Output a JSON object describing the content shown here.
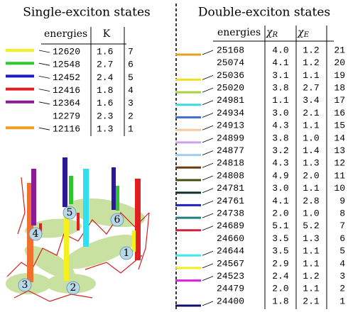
{
  "left": {
    "title": "Single-exciton states",
    "columns": [
      "energies",
      "K"
    ],
    "rows": [
      {
        "energy": "12620",
        "k": "1.6",
        "index": "7",
        "color": "#f5f01e"
      },
      {
        "energy": "12548",
        "k": "2.7",
        "index": "6",
        "color": "#2ec82e"
      },
      {
        "energy": "12452",
        "k": "2.4",
        "index": "5",
        "color": "#1a1ac8"
      },
      {
        "energy": "12416",
        "k": "1.8",
        "index": "4",
        "color": "#e02020"
      },
      {
        "energy": "12364",
        "k": "1.6",
        "index": "3",
        "color": "#8a1a9a"
      },
      {
        "energy": "12279",
        "k": "2.3",
        "index": "2"
      },
      {
        "energy": "12116",
        "k": "1.3",
        "index": "1",
        "color": "#f0a020"
      }
    ]
  },
  "structure": {
    "labels": [
      "1",
      "2",
      "3",
      "4",
      "5",
      "6"
    ]
  },
  "right": {
    "title": "Double-exciton states",
    "columns": [
      {
        "text": "energies"
      },
      {
        "text": "χ",
        "sub": "R"
      },
      {
        "text": "χ",
        "sub": "E"
      }
    ],
    "rows": [
      {
        "energy": "25168",
        "r": "4.0",
        "e": "1.2",
        "index": "21",
        "color": "#e8a020"
      },
      {
        "energy": "25074",
        "r": "4.1",
        "e": "1.2",
        "index": "20"
      },
      {
        "energy": "25036",
        "r": "3.1",
        "e": "1.1",
        "index": "19",
        "color": "#f0e020"
      },
      {
        "energy": "25020",
        "r": "3.8",
        "e": "2.7",
        "index": "18",
        "color": "#a8d040"
      },
      {
        "energy": "24981",
        "r": "1.1",
        "e": "3.4",
        "index": "17",
        "color": "#40d8e0"
      },
      {
        "energy": "24934",
        "r": "3.0",
        "e": "2.1",
        "index": "16",
        "color": "#4070d0"
      },
      {
        "energy": "24913",
        "r": "4.3",
        "e": "1.1",
        "index": "15",
        "color": "#f8c8a0"
      },
      {
        "energy": "24899",
        "r": "3.8",
        "e": "1.0",
        "index": "14",
        "color": "#d0a0f0"
      },
      {
        "energy": "24877",
        "r": "3.2",
        "e": "1.4",
        "index": "13",
        "color": "#a0d0f0"
      },
      {
        "energy": "24818",
        "r": "4.3",
        "e": "1.3",
        "index": "12",
        "color": "#6a3a10"
      },
      {
        "energy": "24808",
        "r": "4.9",
        "e": "2.0",
        "index": "11",
        "color": "#405010"
      },
      {
        "energy": "24781",
        "r": "3.0",
        "e": "1.1",
        "index": "10",
        "color": "#103030"
      },
      {
        "energy": "24761",
        "r": "4.1",
        "e": "2.8",
        "index": "9",
        "color": "#2020c0"
      },
      {
        "energy": "24738",
        "r": "2.0",
        "e": "1.0",
        "index": "8",
        "color": "#208080"
      },
      {
        "energy": "24689",
        "r": "5.1",
        "e": "5.2",
        "index": "7",
        "color": "#d02040"
      },
      {
        "energy": "24660",
        "r": "3.5",
        "e": "1.3",
        "index": "6"
      },
      {
        "energy": "24644",
        "r": "3.5",
        "e": "1.1",
        "index": "5",
        "color": "#40e8f0"
      },
      {
        "energy": "24567",
        "r": "2.9",
        "e": "1.1",
        "index": "4",
        "color": "#f0f020"
      },
      {
        "energy": "24523",
        "r": "2.4",
        "e": "1.2",
        "index": "3",
        "color": "#e020e0"
      },
      {
        "energy": "24479",
        "r": "2.0",
        "e": "1.1",
        "index": "2"
      },
      {
        "energy": "24400",
        "r": "1.8",
        "e": "2.1",
        "index": "1",
        "color": "#101070"
      }
    ]
  }
}
